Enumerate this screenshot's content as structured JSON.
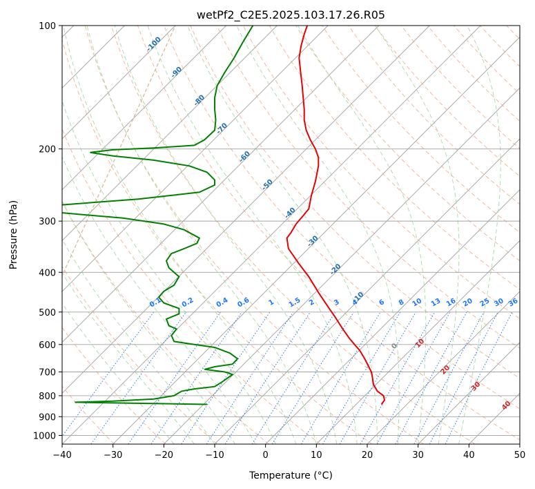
{
  "chart_data": {
    "type": "line",
    "subtype": "skew-T log-p",
    "title": "wetPf2_C2E5.2025.103.17.26.R05",
    "xlabel": "Temperature (°C)",
    "ylabel": "Pressure (hPa)",
    "xlim": [
      -40,
      50
    ],
    "ylim": [
      1050,
      100
    ],
    "y_scale": "log",
    "grid": true,
    "x_ticks": [
      -40,
      -30,
      -20,
      -10,
      0,
      10,
      20,
      30,
      40,
      50
    ],
    "x_tick_labels": [
      "−40",
      "−30",
      "−20",
      "−10",
      "0",
      "10",
      "20",
      "30",
      "40",
      "50"
    ],
    "y_ticks": [
      100,
      200,
      300,
      400,
      500,
      600,
      700,
      800,
      900,
      1000
    ],
    "y_tick_labels": [
      "100",
      "200",
      "300",
      "400",
      "500",
      "600",
      "700",
      "800",
      "900",
      "1000"
    ],
    "colors": {
      "temperature": "#e60000",
      "dewpoint": "#008000",
      "isotherm": "#a0a0a0",
      "dry_adiabat": "#f4a582",
      "moist_adiabat": "#a6d8a6",
      "mixing_ratio": "#1f77ff",
      "moist_adiabat_label": "#1f6fb4",
      "dry_adiabat_label": "#d62728",
      "zero_label": "#888888",
      "lcl_curve": "#d2b48c"
    },
    "series": [
      {
        "key": "temperature",
        "points": [
          [
            22.8,
            840
          ],
          [
            23.4,
            820
          ],
          [
            23.2,
            800
          ],
          [
            22.0,
            780
          ],
          [
            21.2,
            750
          ],
          [
            21.0,
            720
          ],
          [
            20.8,
            700
          ],
          [
            20.3,
            680
          ],
          [
            19.5,
            650
          ],
          [
            18.5,
            620
          ],
          [
            17.5,
            600
          ],
          [
            16.5,
            580
          ],
          [
            15.2,
            550
          ],
          [
            13.5,
            510
          ],
          [
            12.5,
            490
          ],
          [
            10.5,
            450
          ],
          [
            8.5,
            410
          ],
          [
            6.5,
            380
          ],
          [
            4.5,
            350
          ],
          [
            4.2,
            330
          ],
          [
            5.0,
            320
          ],
          [
            6.0,
            305
          ],
          [
            7.5,
            290
          ],
          [
            8.5,
            280
          ],
          [
            9.0,
            260
          ],
          [
            9.8,
            240
          ],
          [
            10.4,
            220
          ],
          [
            10.4,
            210
          ],
          [
            9.8,
            200
          ],
          [
            8.8,
            190
          ],
          [
            8.0,
            180
          ],
          [
            7.6,
            170
          ],
          [
            7.6,
            160
          ],
          [
            7.4,
            150
          ],
          [
            7.2,
            140
          ],
          [
            6.9,
            130
          ],
          [
            6.6,
            120
          ],
          [
            7.0,
            112
          ],
          [
            7.6,
            105
          ],
          [
            8.2,
            100
          ]
        ]
      },
      {
        "key": "dewpoint",
        "points": [
          [
            -11.5,
            840
          ],
          [
            -37.5,
            830
          ],
          [
            -30,
            825
          ],
          [
            -22,
            815
          ],
          [
            -18,
            800
          ],
          [
            -16.5,
            780
          ],
          [
            -14,
            770
          ],
          [
            -10,
            760
          ],
          [
            -8.5,
            740
          ],
          [
            -6.5,
            710
          ],
          [
            -8,
            700
          ],
          [
            -12,
            690
          ],
          [
            -10,
            680
          ],
          [
            -6.5,
            670
          ],
          [
            -5.5,
            650
          ],
          [
            -7,
            630
          ],
          [
            -10,
            610
          ],
          [
            -14,
            600
          ],
          [
            -18,
            590
          ],
          [
            -18.5,
            570
          ],
          [
            -17.5,
            550
          ],
          [
            -19,
            540
          ],
          [
            -19.5,
            520
          ],
          [
            -17,
            505
          ],
          [
            -17,
            490
          ],
          [
            -20,
            475
          ],
          [
            -21,
            460
          ],
          [
            -20,
            445
          ],
          [
            -18,
            430
          ],
          [
            -17,
            410
          ],
          [
            -19,
            390
          ],
          [
            -19.5,
            375
          ],
          [
            -18.5,
            360
          ],
          [
            -16,
            350
          ],
          [
            -13.5,
            340
          ],
          [
            -13,
            330
          ],
          [
            -16,
            315
          ],
          [
            -20,
            305
          ],
          [
            -28,
            295
          ],
          [
            -42,
            285
          ],
          [
            -42,
            275
          ],
          [
            -25,
            265
          ],
          [
            -13,
            255
          ],
          [
            -10,
            245
          ],
          [
            -10,
            238
          ],
          [
            -11.5,
            228
          ],
          [
            -15,
            220
          ],
          [
            -22,
            213
          ],
          [
            -30,
            208
          ],
          [
            -34.5,
            204
          ],
          [
            -30,
            201
          ],
          [
            -22,
            199
          ],
          [
            -14,
            196
          ],
          [
            -12,
            190
          ],
          [
            -10,
            180
          ],
          [
            -9.8,
            170
          ],
          [
            -10,
            160
          ],
          [
            -10,
            150
          ],
          [
            -9.5,
            140
          ],
          [
            -8,
            130
          ],
          [
            -6.2,
            120
          ],
          [
            -4.5,
            110
          ],
          [
            -2.5,
            100
          ]
        ]
      }
    ],
    "moist_adiabat_labels": [
      "-100",
      "-90",
      "-80",
      "-70",
      "-60",
      "-50",
      "-40",
      "-30",
      "-20",
      "-10"
    ],
    "mixing_ratio_labels": [
      "0.1",
      "0.2",
      "0.4",
      "0.6",
      "1",
      "1.5",
      "2",
      "3",
      "4",
      "6",
      "8",
      "10",
      "13",
      "16",
      "20",
      "25",
      "30",
      "36"
    ],
    "dry_adiabat_labels": [
      "0",
      "10",
      "20",
      "30",
      "40"
    ]
  }
}
